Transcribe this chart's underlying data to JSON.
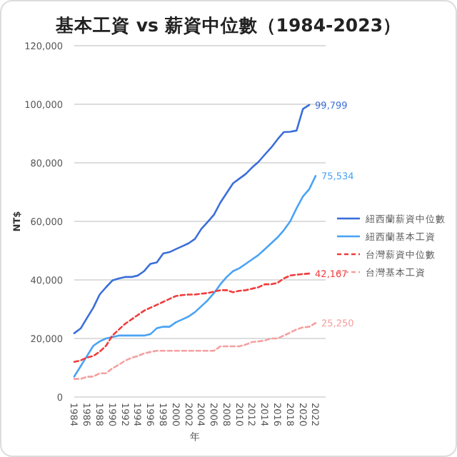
{
  "chart_data": {
    "type": "line",
    "title": "基本工資 vs 薪資中位數（1984-2023）",
    "xlabel": "年",
    "ylabel": "NT$",
    "categories": [
      "1984",
      null,
      "1986",
      null,
      "1988",
      null,
      "1990",
      null,
      "1992",
      null,
      "1994",
      null,
      "1996",
      null,
      "1998",
      null,
      "2000",
      null,
      "2002",
      null,
      "2004",
      null,
      "2006",
      null,
      "2008",
      null,
      "2010",
      null,
      "2012",
      null,
      "2014",
      null,
      "2016",
      null,
      "2018",
      null,
      "2020",
      null,
      "2022"
    ],
    "ylim": [
      0,
      120000
    ],
    "yticks": [
      0,
      {
        "value": 20000,
        "label": "20,000"
      },
      {
        "value": 40000,
        "label": "40,000"
      },
      {
        "value": 60000,
        "label": "60,000"
      },
      {
        "value": 80000,
        "label": "80,000"
      },
      {
        "value": 100000,
        "label": "100,000"
      },
      {
        "value": 120000,
        "label": "120,000"
      }
    ],
    "grid": "y",
    "legend": "right",
    "series": [
      {
        "name": "紐西蘭薪資中位數",
        "color": "#3b6fd9",
        "line_style": "solid",
        "values": [
          21800,
          23400,
          27000,
          30500,
          35000,
          37500,
          39800,
          40500,
          41000,
          41000,
          41500,
          43000,
          45500,
          46000,
          49000,
          49500,
          50500,
          51500,
          52500,
          54000,
          57400,
          59800,
          62300,
          66400,
          69700,
          73000,
          74600,
          76200,
          78400,
          80300,
          82800,
          85200,
          88000,
          90500,
          90600,
          91000,
          98400,
          99799,
          null
        ],
        "value_labels": [
          null,
          null,
          null,
          null,
          null,
          null,
          null,
          null,
          null,
          null,
          null,
          null,
          null,
          null,
          null,
          null,
          null,
          null,
          null,
          null,
          null,
          null,
          null,
          null,
          null,
          null,
          null,
          null,
          null,
          null,
          null,
          null,
          null,
          null,
          null,
          null,
          null,
          "99,799",
          null
        ]
      },
      {
        "name": "紐西蘭基本工資",
        "color": "#4aa3f5",
        "line_style": "solid",
        "values": [
          7000,
          10500,
          14000,
          17500,
          19000,
          20000,
          20500,
          21000,
          21000,
          21000,
          21000,
          21000,
          21500,
          23500,
          24000,
          24000,
          25500,
          26500,
          27500,
          29000,
          31000,
          33000,
          35500,
          38500,
          41000,
          43000,
          44000,
          45500,
          47000,
          48500,
          50500,
          52500,
          54500,
          57000,
          60000,
          64500,
          68500,
          71000,
          75534
        ],
        "value_labels": [
          null,
          null,
          null,
          null,
          null,
          null,
          null,
          null,
          null,
          null,
          null,
          null,
          null,
          null,
          null,
          null,
          null,
          null,
          null,
          null,
          null,
          null,
          null,
          null,
          null,
          null,
          null,
          null,
          null,
          null,
          null,
          null,
          null,
          null,
          null,
          null,
          null,
          null,
          "75,534"
        ]
      },
      {
        "name": "台灣薪資中位數",
        "color": "#f03c3c",
        "line_style": "dashed",
        "values": [
          12000,
          12500,
          13500,
          14000,
          15500,
          17500,
          21000,
          23000,
          25000,
          26500,
          28000,
          29500,
          30500,
          31500,
          32500,
          33500,
          34500,
          34800,
          35000,
          35000,
          35300,
          35500,
          36000,
          36500,
          36500,
          35800,
          36300,
          36500,
          37000,
          37500,
          38500,
          38500,
          39000,
          40500,
          41500,
          41800,
          42000,
          42167,
          null
        ],
        "value_labels": [
          null,
          null,
          null,
          null,
          null,
          null,
          null,
          null,
          null,
          null,
          null,
          null,
          null,
          null,
          null,
          null,
          null,
          null,
          null,
          null,
          null,
          null,
          null,
          null,
          null,
          null,
          null,
          null,
          null,
          null,
          null,
          null,
          null,
          null,
          null,
          null,
          null,
          "42,167",
          null
        ]
      },
      {
        "name": "台灣基本工資",
        "color": "#f5a0a0",
        "line_style": "dashed",
        "values": [
          6200,
          6200,
          6900,
          7000,
          8100,
          8100,
          9800,
          11000,
          12400,
          13400,
          14000,
          14900,
          15400,
          15800,
          15800,
          15800,
          15800,
          15800,
          15800,
          15800,
          15800,
          15800,
          15800,
          17300,
          17300,
          17300,
          17300,
          17900,
          18800,
          19000,
          19300,
          20000,
          20000,
          21000,
          22000,
          23100,
          23800,
          24000,
          25250
        ],
        "value_labels": [
          null,
          null,
          null,
          null,
          null,
          null,
          null,
          null,
          null,
          null,
          null,
          null,
          null,
          null,
          null,
          null,
          null,
          null,
          null,
          null,
          null,
          null,
          null,
          null,
          null,
          null,
          null,
          null,
          null,
          null,
          null,
          null,
          null,
          null,
          null,
          null,
          null,
          null,
          "25,250"
        ]
      }
    ]
  }
}
